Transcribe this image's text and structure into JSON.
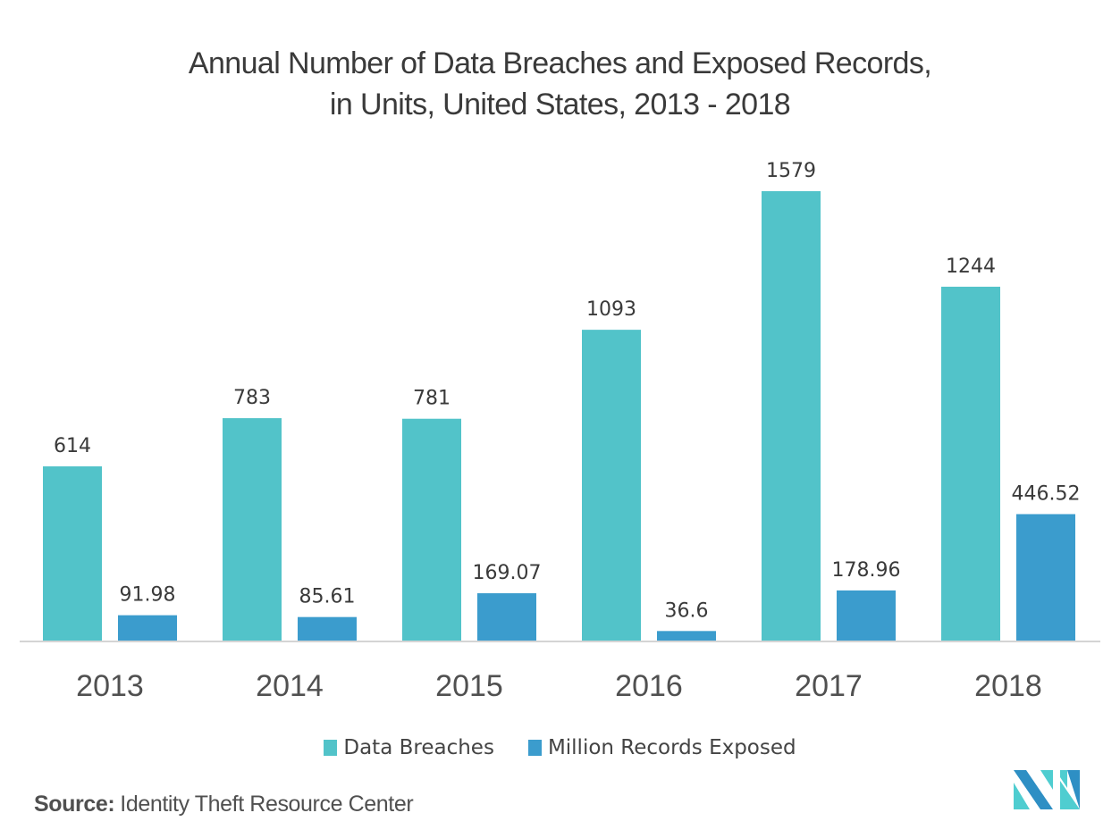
{
  "chart_data": {
    "type": "bar",
    "title": "Annual Number of Data Breaches and Exposed Records, in Units, United States, 2013 - 2018",
    "title_lines": [
      "Annual Number of Data Breaches and Exposed Records,",
      "in Units, United States, 2013 - 2018"
    ],
    "xlabel": "",
    "ylabel": "",
    "categories": [
      "2013",
      "2014",
      "2015",
      "2016",
      "2017",
      "2018"
    ],
    "series": [
      {
        "name": "Data Breaches",
        "color": "#52c3c9",
        "values": [
          614,
          783,
          781,
          1093,
          1579,
          1244
        ],
        "labels": [
          "614",
          "783",
          "781",
          "1093",
          "1579",
          "1244"
        ]
      },
      {
        "name": "Million Records Exposed",
        "color": "#3b9ccd",
        "values": [
          91.98,
          85.61,
          169.07,
          36.6,
          178.96,
          446.52
        ],
        "labels": [
          "91.98",
          "85.61",
          "169.07",
          "36.6",
          "178.96",
          "446.52"
        ]
      }
    ],
    "ylim": [
      0,
      1579
    ],
    "grid": false,
    "y_axis_visible": false,
    "legend_position": "bottom-center",
    "data_labels": true
  },
  "source": {
    "label": "Source:",
    "text": "Identity Theft Resource Center"
  },
  "logo": {
    "name": "Mordor Intelligence logo",
    "colors": [
      "#2e8fc4",
      "#4fcdd0"
    ]
  },
  "colors": {
    "axis": "#d4d4d4",
    "text": "#3a3a3a",
    "category_label": "#505050"
  }
}
